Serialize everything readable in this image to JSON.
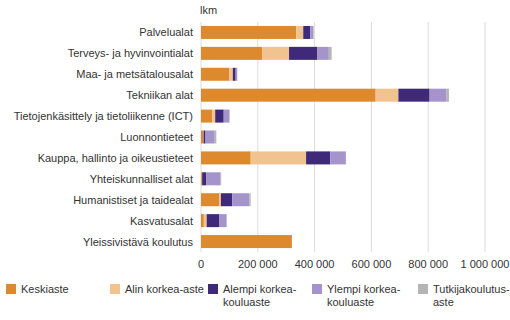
{
  "chart_data": {
    "type": "bar",
    "orientation": "horizontal",
    "stacked": true,
    "grid": true,
    "legend": "bottom",
    "ylabel": "lkm",
    "categories": [
      "Palvelualat",
      "Terveys- ja hyvinvointialat",
      "Maa- ja metsätalousalat",
      "Tekniikan alat",
      "Tietojenkäsittely ja tietoliikenne (ICT)",
      "Luonnontieteet",
      "Kauppa, hallinto ja oikeustieteet",
      "Yhteiskunnalliset alat",
      "Humanistiset ja taidealat",
      "Kasvatusalat",
      "Yleissivistävä koulutus"
    ],
    "series": [
      {
        "name": "Keskiaste",
        "color": "#dd8a2e",
        "values": [
          335000,
          215000,
          100000,
          615000,
          40000,
          8000,
          175000,
          3000,
          65000,
          10000,
          320000
        ]
      },
      {
        "name": "Alin korkea-aste",
        "color": "#f1c48f",
        "values": [
          25000,
          95000,
          12000,
          80000,
          10000,
          1000,
          195000,
          1000,
          5000,
          10000,
          0
        ]
      },
      {
        "name": "Alempi korkea-\nkouluaste",
        "color": "#3e2a79",
        "values": [
          25000,
          100000,
          10000,
          110000,
          30000,
          7000,
          85000,
          15000,
          40000,
          45000,
          0
        ]
      },
      {
        "name": "Ylempi korkea-\nkouluaste",
        "color": "#a594cc",
        "values": [
          10000,
          40000,
          5000,
          60000,
          20000,
          30000,
          55000,
          50000,
          60000,
          25000,
          0
        ]
      },
      {
        "name": "Tutkijakoulutus-\naste",
        "color": "#b5b5b5",
        "values": [
          2000,
          10000,
          1000,
          8000,
          1000,
          8000,
          1000,
          2000,
          5000,
          1000,
          0
        ]
      }
    ],
    "xlim": [
      0,
      1000000
    ],
    "xticks": [
      0,
      {
        "value": 200000,
        "label": "200 000"
      },
      {
        "value": 400000,
        "label": "400 000"
      },
      {
        "value": 600000,
        "label": "600 000"
      },
      {
        "value": 800000,
        "label": "800 000"
      },
      {
        "value": 1000000,
        "label": "1 000 000"
      }
    ]
  }
}
